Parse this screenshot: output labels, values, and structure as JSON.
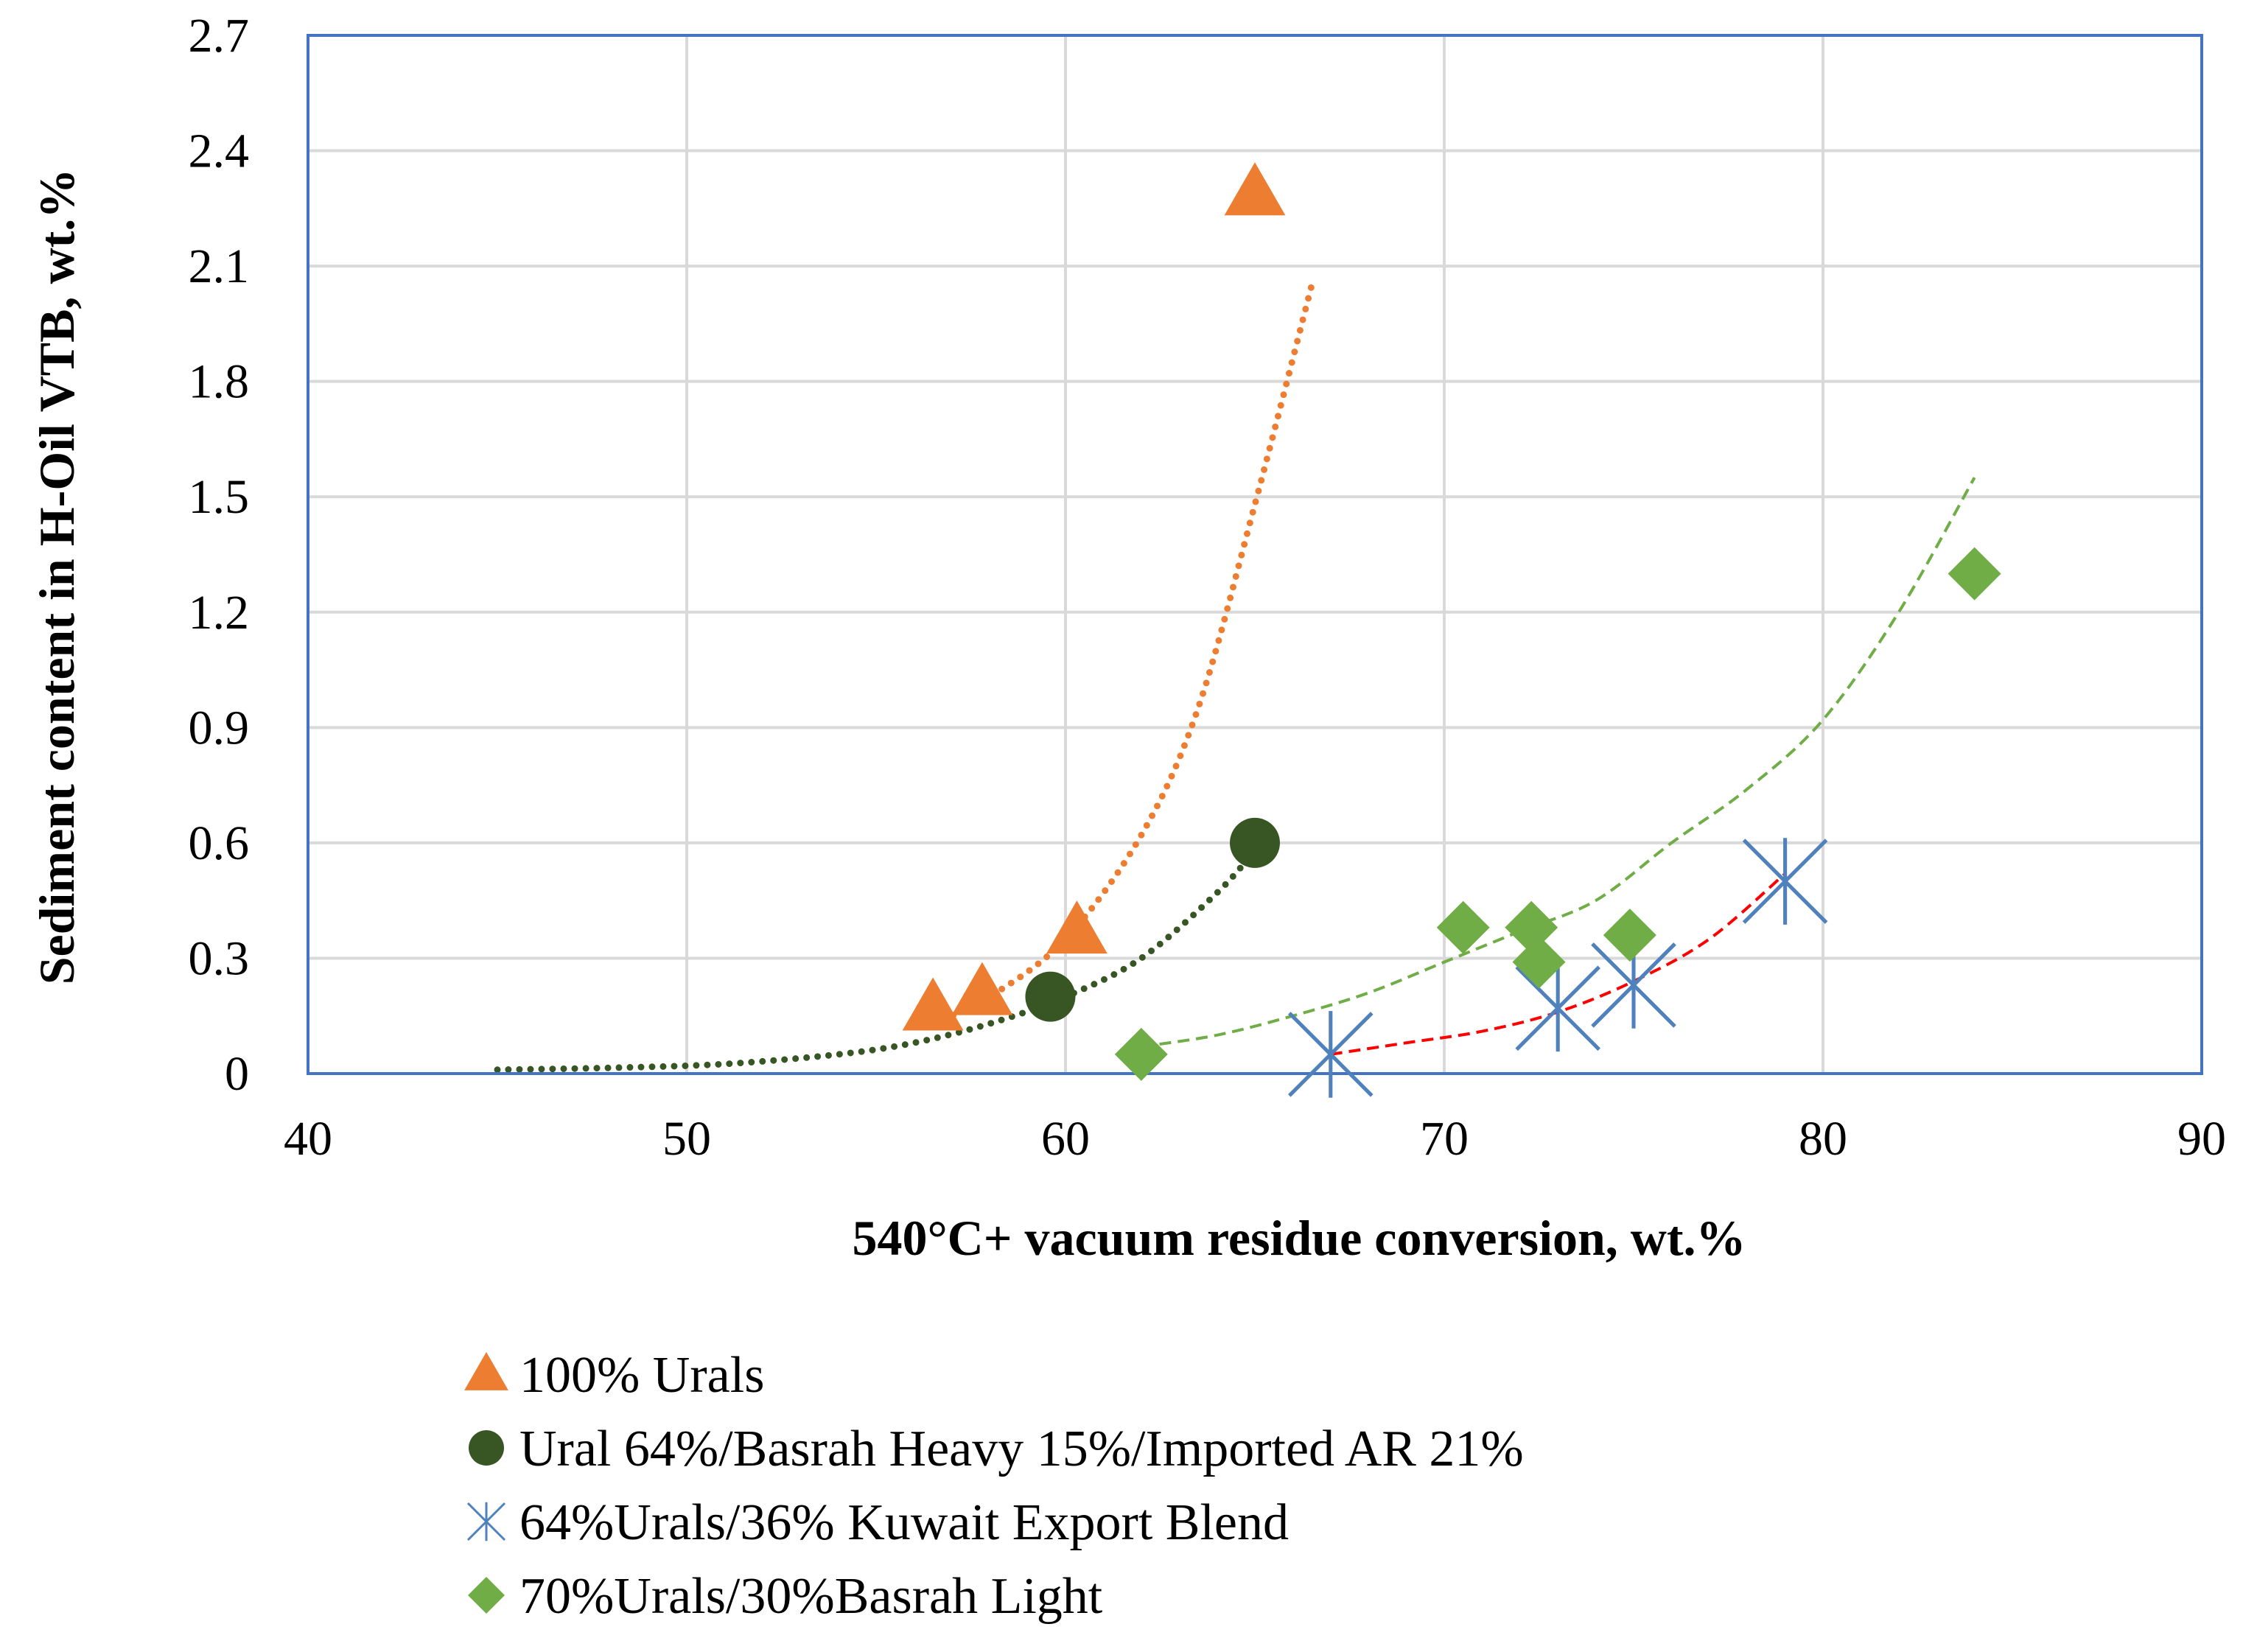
{
  "chart_data": {
    "type": "scatter",
    "title": "",
    "xlabel": "540°C+ vacuum residue conversion, wt.%",
    "ylabel": "Sediment content in H-Oil VTB, wt.%",
    "xlim": [
      40,
      90
    ],
    "ylim": [
      0,
      2.7
    ],
    "x_ticks": [
      40,
      50,
      60,
      70,
      80,
      90
    ],
    "x_tick_labels": [
      "40",
      "50",
      "60",
      "70",
      "80",
      "90"
    ],
    "y_ticks": [
      0,
      0.3,
      0.6,
      0.9,
      1.2,
      1.5,
      1.8,
      2.1,
      2.4,
      2.7
    ],
    "y_tick_labels": [
      "0",
      "0.3",
      "0.6",
      "0.9",
      "1.2",
      "1.5",
      "1.8",
      "2.1",
      "2.4",
      "2.7"
    ],
    "grid": true,
    "legend_position": "bottom",
    "series": [
      {
        "name": "100% Urals",
        "marker": "triangle",
        "color": "#ED7D31",
        "points": [
          [
            56.5,
            0.17
          ],
          [
            57.8,
            0.21
          ],
          [
            60.3,
            0.37
          ],
          [
            65.0,
            2.29
          ]
        ],
        "trendline": {
          "style": "dotted",
          "color": "#ED7D31",
          "points": [
            [
              56.5,
              0.13
            ],
            [
              58,
              0.2
            ],
            [
              60,
              0.35
            ],
            [
              62,
              0.62
            ],
            [
              63.5,
              0.95
            ],
            [
              65,
              1.48
            ],
            [
              66.5,
              2.05
            ]
          ]
        }
      },
      {
        "name": "Ural 64%/Basrah Heavy 15%/Imported AR 21%",
        "marker": "circle",
        "color": "#375623",
        "points": [
          [
            59.6,
            0.2
          ],
          [
            65.0,
            0.6
          ]
        ],
        "trendline": {
          "style": "dotted",
          "color": "#375623",
          "points": [
            [
              45,
              0.01
            ],
            [
              48,
              0.015
            ],
            [
              51,
              0.025
            ],
            [
              54,
              0.05
            ],
            [
              56,
              0.08
            ],
            [
              58,
              0.13
            ],
            [
              60,
              0.2
            ],
            [
              62,
              0.3
            ],
            [
              64,
              0.47
            ],
            [
              65,
              0.58
            ]
          ]
        }
      },
      {
        "name": "64%Urals/36% Kuwait Export Blend",
        "marker": "asterisk",
        "color": "#4F81BD",
        "points": [
          [
            67.0,
            0.05
          ],
          [
            73.0,
            0.17
          ],
          [
            75.0,
            0.23
          ],
          [
            79.0,
            0.5
          ]
        ],
        "trendline": {
          "style": "dashed",
          "color": "#FF0000",
          "points": [
            [
              67,
              0.05
            ],
            [
              69,
              0.08
            ],
            [
              71,
              0.11
            ],
            [
              73,
              0.16
            ],
            [
              75,
              0.24
            ],
            [
              77,
              0.35
            ],
            [
              79,
              0.52
            ]
          ]
        }
      },
      {
        "name": "70%Urals/30%Basrah Light",
        "marker": "diamond",
        "color": "#70AD47",
        "points": [
          [
            62.0,
            0.05
          ],
          [
            70.5,
            0.38
          ],
          [
            72.3,
            0.38
          ],
          [
            72.5,
            0.29
          ],
          [
            74.9,
            0.36
          ],
          [
            84.0,
            1.3
          ]
        ],
        "trendline": {
          "style": "dashed",
          "color": "#70AD47",
          "points": [
            [
              62,
              0.07
            ],
            [
              64,
              0.1
            ],
            [
              66,
              0.15
            ],
            [
              68,
              0.21
            ],
            [
              70,
              0.29
            ],
            [
              72,
              0.37
            ],
            [
              74,
              0.45
            ],
            [
              76,
              0.6
            ],
            [
              78,
              0.74
            ],
            [
              80,
              0.92
            ],
            [
              82,
              1.2
            ],
            [
              84,
              1.55
            ]
          ]
        }
      }
    ]
  }
}
